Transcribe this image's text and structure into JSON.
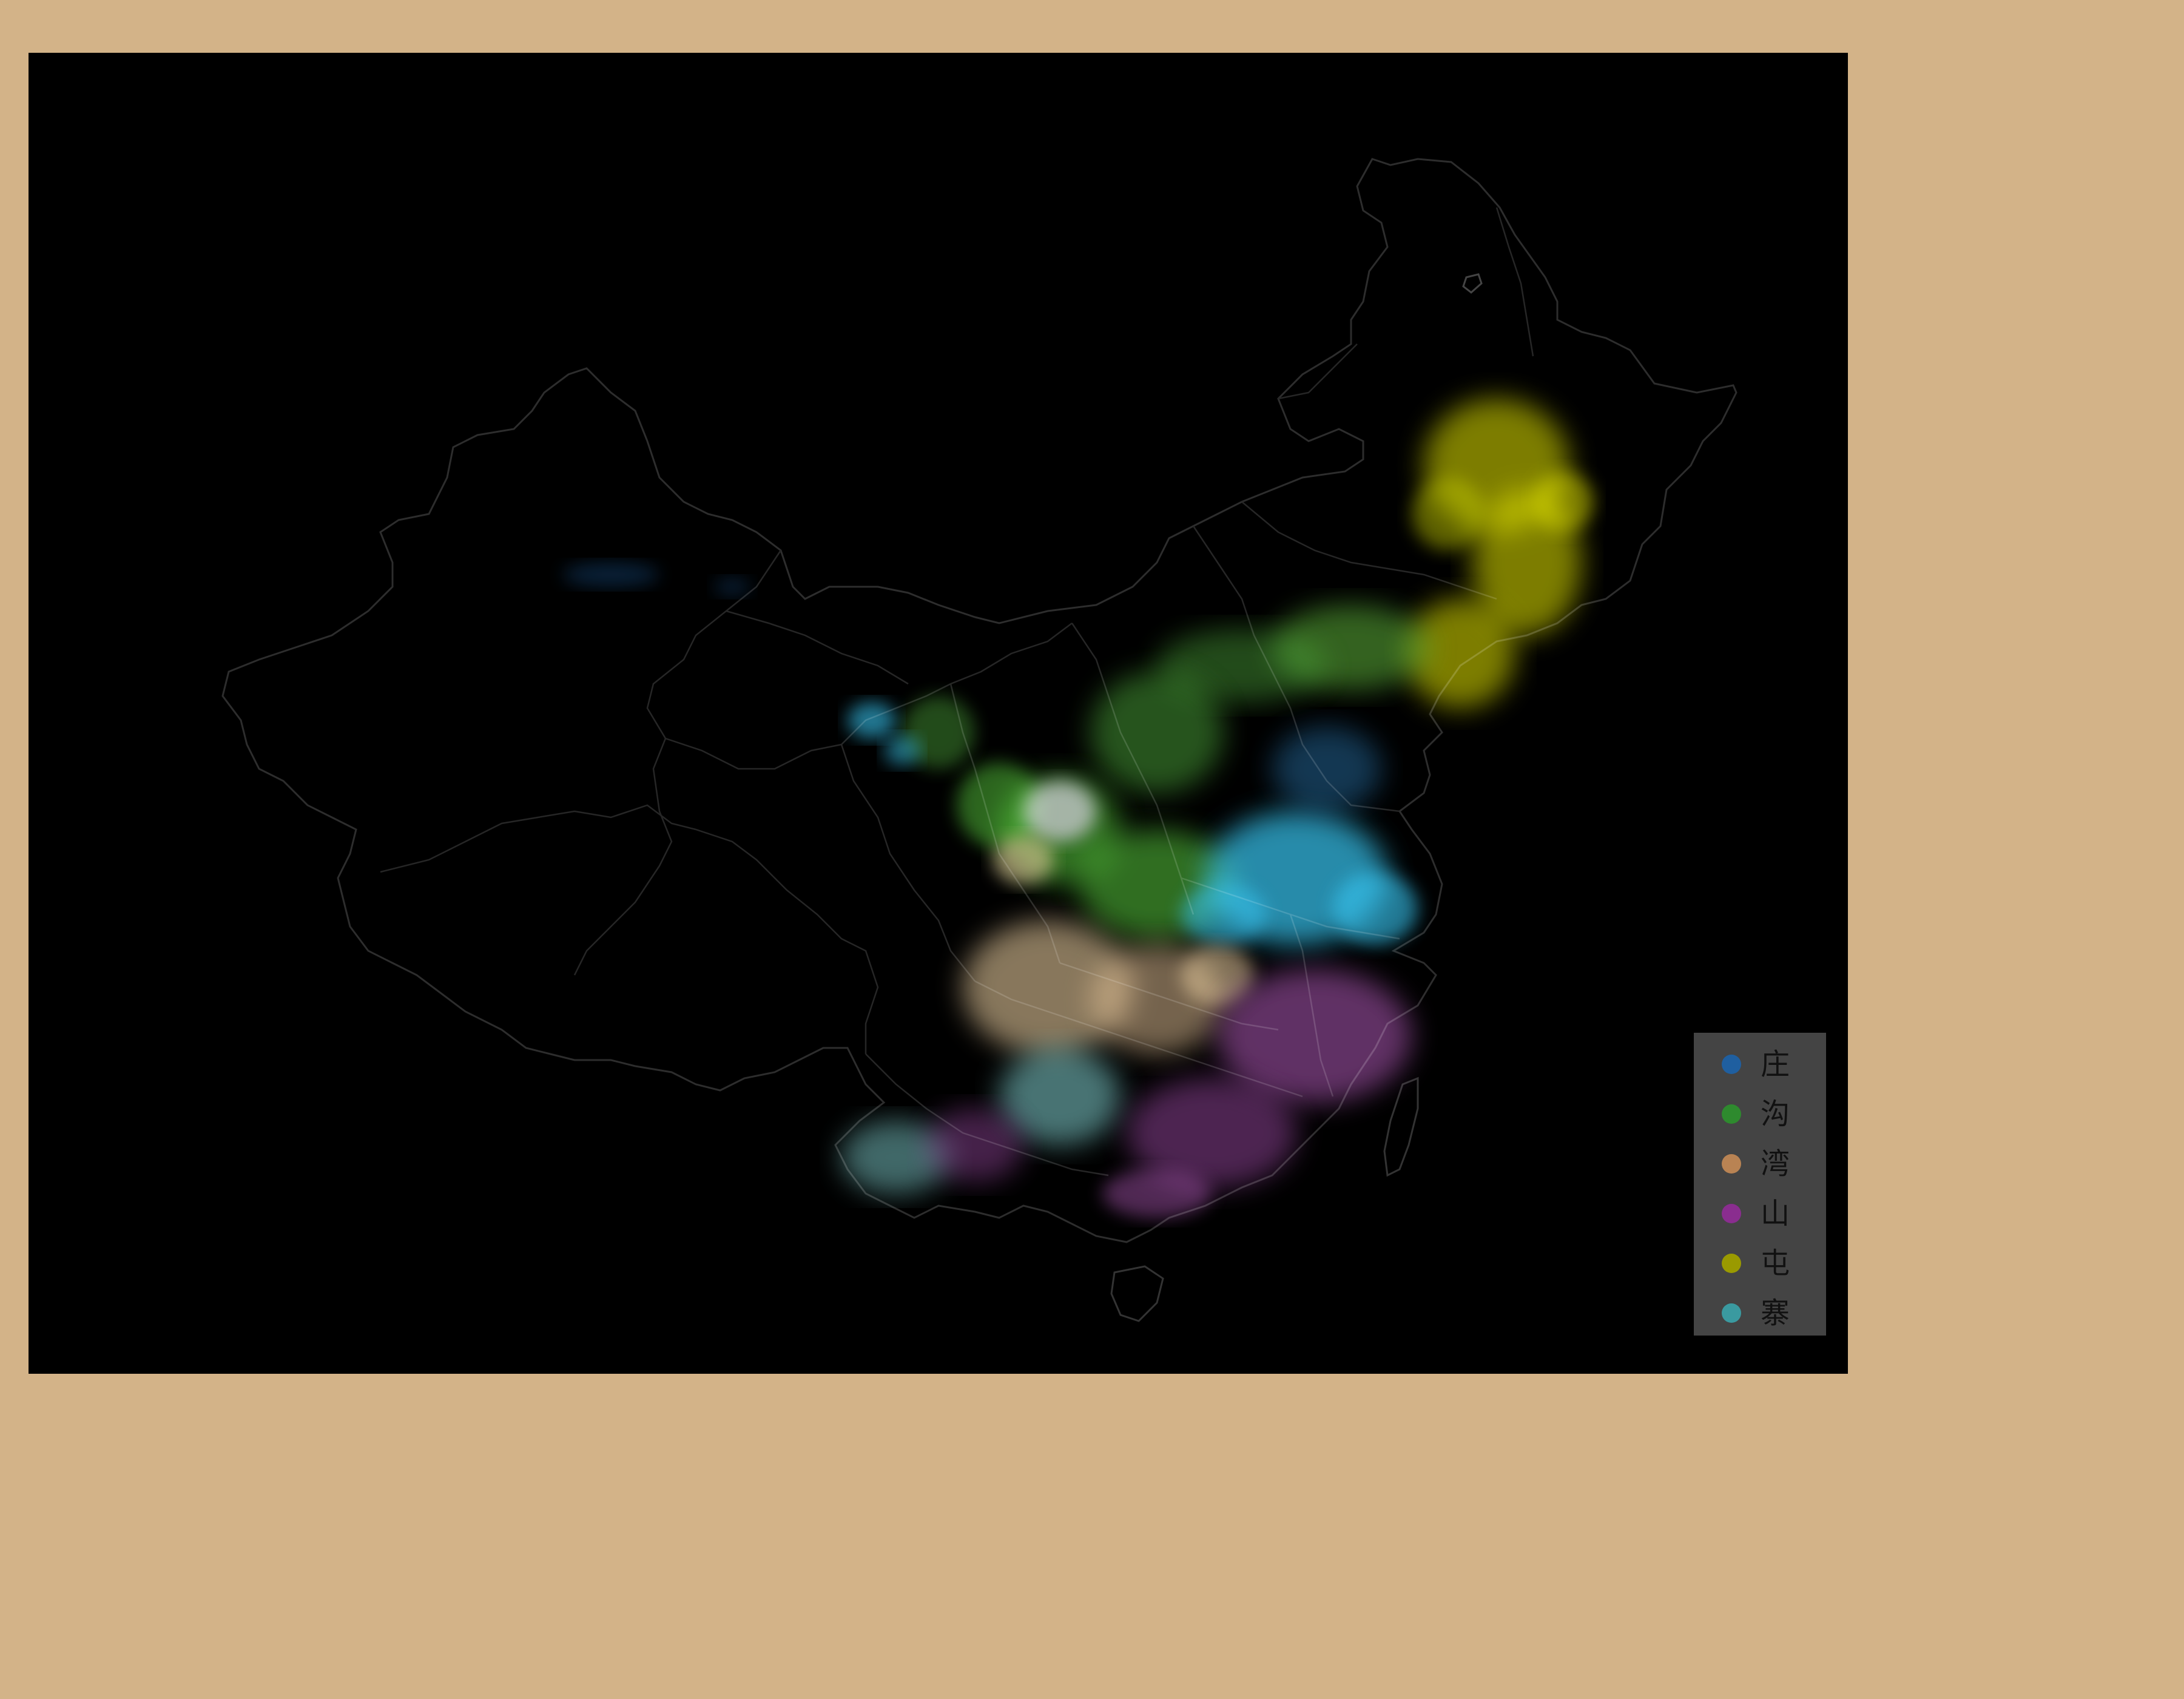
{
  "map": {
    "background": "#000000",
    "border_color": "#333333"
  },
  "legend": {
    "items": [
      {
        "label": "庄",
        "color": "#1f5fa0"
      },
      {
        "label": "沟",
        "color": "#2e8a2e"
      },
      {
        "label": "湾",
        "color": "#b98353"
      },
      {
        "label": "山",
        "color": "#8a2d8f"
      },
      {
        "label": "屯",
        "color": "#9a9a00"
      },
      {
        "label": "寨",
        "color": "#3a9aa0"
      }
    ]
  },
  "clusters": [
    {
      "name": "湾",
      "color": "#f7d9a8"
    },
    {
      "name": "屯",
      "color": "#e3e400"
    },
    {
      "name": "沟",
      "color": "#58c93c"
    },
    {
      "name": "庄",
      "color": "#39c6f2"
    },
    {
      "name": "山",
      "color": "#b05ab8"
    },
    {
      "name": "寨",
      "color": "#8fe6e6"
    }
  ]
}
